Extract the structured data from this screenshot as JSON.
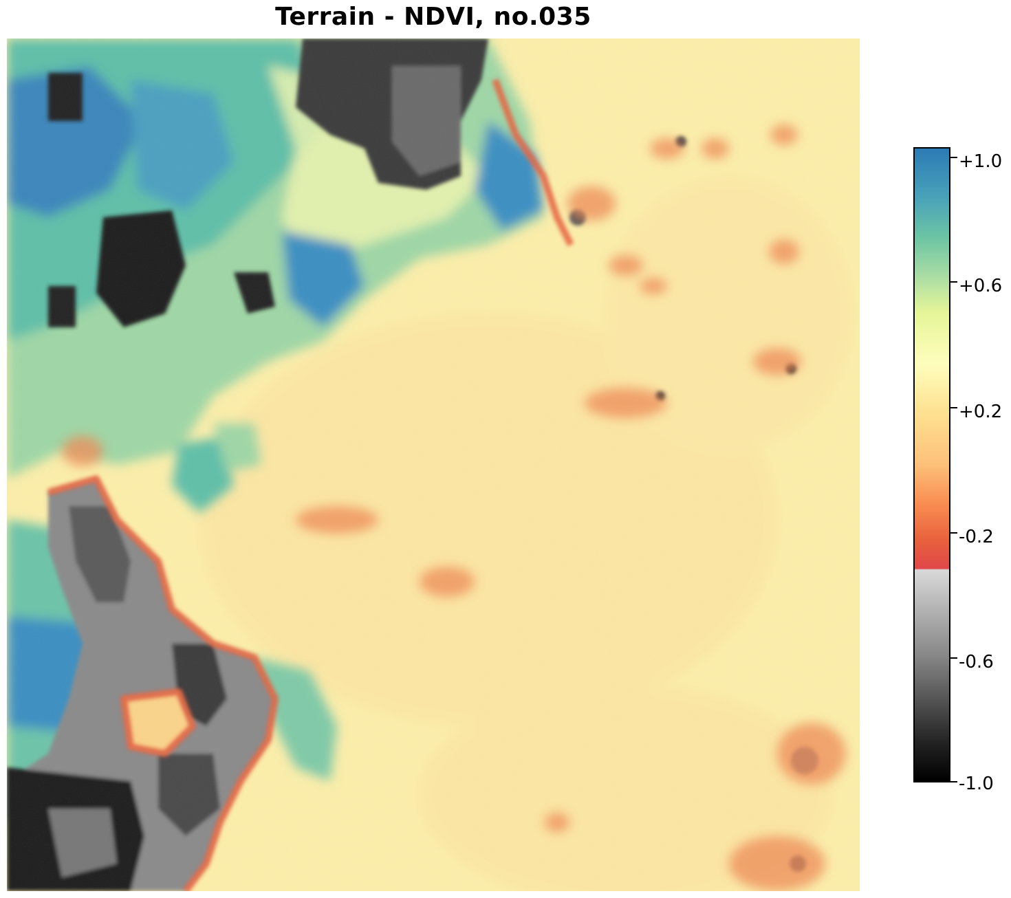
{
  "title": "Terrain - NDVI, no.035",
  "colorbar": {
    "ticks": [
      {
        "value": 1.0,
        "label": "+1.0"
      },
      {
        "value": 0.6,
        "label": "+0.6"
      },
      {
        "value": 0.2,
        "label": "+0.2"
      },
      {
        "value": -0.2,
        "label": "-0.2"
      },
      {
        "value": -0.6,
        "label": "-0.6"
      },
      {
        "value": -1.0,
        "label": "-1.0"
      }
    ],
    "min": -1.0,
    "max": 1.04,
    "colors": {
      "high": "#2c7bb6",
      "mid_high": "#5fbfa0",
      "mid": "#e6f598",
      "neutral": "#fee090",
      "low_pos": "#fdae61",
      "negative_edge": "#e34a33",
      "water_light": "#d9d9d9",
      "water_dark": "#000000"
    }
  }
}
